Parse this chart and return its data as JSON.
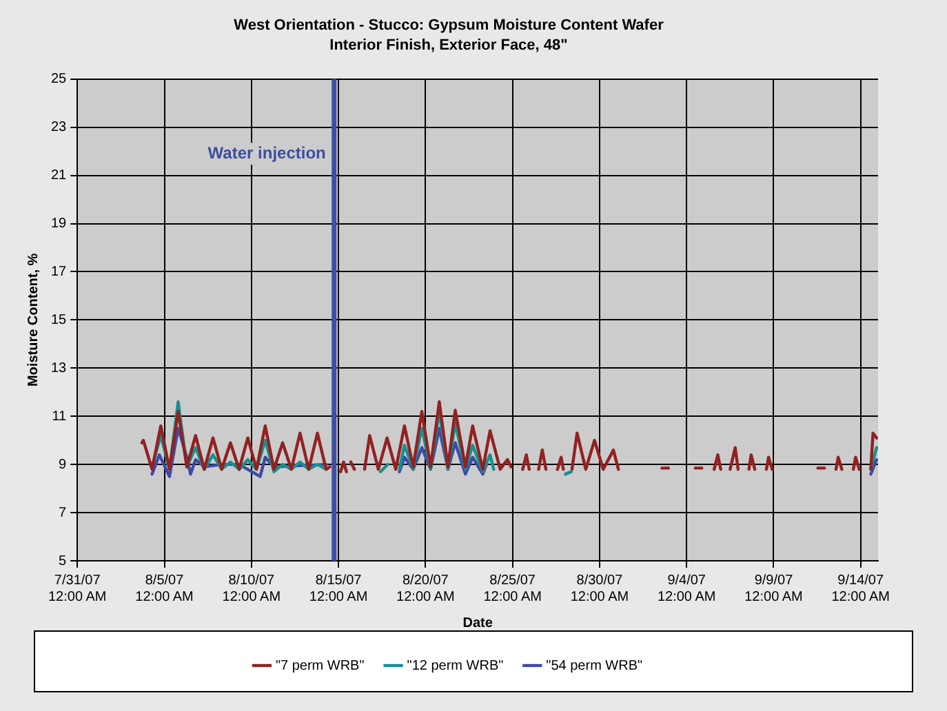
{
  "chart_data": {
    "type": "line",
    "title": "West Orientation - Stucco: Gypsum Moisture Content Wafer",
    "subtitle": "Interior Finish, Exterior Face, 48\"",
    "xlabel": "Date",
    "ylabel": "Moisture Content, %",
    "xlim": [
      "--07-31",
      "--09-15"
    ],
    "xticks": [
      {
        "value": "--07-31",
        "label": "7/31/07 12:00 AM"
      },
      {
        "value": "--08-05",
        "label": "8/5/07 12:00 AM"
      },
      {
        "value": "--08-10",
        "label": "8/10/07 12:00 AM"
      },
      {
        "value": "--08-15",
        "label": "8/15/07 12:00 AM"
      },
      {
        "value": "--08-20",
        "label": "8/20/07 12:00 AM"
      },
      {
        "value": "--08-25",
        "label": "8/25/07 12:00 AM"
      },
      {
        "value": "--08-30",
        "label": "8/30/07 12:00 AM"
      },
      {
        "value": "--09-04",
        "label": "9/4/07 12:00 AM"
      },
      {
        "value": "--09-09",
        "label": "9/9/07 12:00 AM"
      },
      {
        "value": "--09-14",
        "label": "9/14/07 12:00 AM"
      }
    ],
    "ylim": [
      5,
      25
    ],
    "yticks": [
      5,
      7,
      9,
      11,
      13,
      15,
      17,
      19,
      21,
      23,
      25
    ],
    "grid": true,
    "legend": "bottom",
    "marker": "none",
    "line_style": "solid",
    "ref_lines": [
      {
        "axis": "x",
        "value": "--08-14T18:00",
        "label": "Water injection",
        "color": "#3d4fa0"
      }
    ],
    "series": [
      {
        "name": "\"7 perm WRB\"",
        "color": "#922121",
        "x": [
          "--08-03T17:00",
          "--08-03T19:00",
          "--08-04T07:00",
          "--08-04T19:00",
          "--08-05T07:00",
          "--08-05T19:00",
          "--08-06T07:00",
          "--08-06T19:00",
          "--08-07T07:00",
          "--08-07T19:00",
          "--08-08T07:00",
          "--08-08T19:00",
          "--08-09T07:00",
          "--08-09T19:00",
          "--08-10T07:00",
          "--08-10T19:00",
          "--08-11T07:00",
          "--08-11T19:00",
          "--08-12T07:00",
          "--08-12T19:00",
          "--08-13T07:00",
          "--08-13T19:00",
          "--08-14T07:00",
          "--08-14T12:00",
          "--08-14T15:00",
          "--08-15T03:00",
          "--08-15T07:00",
          "--08-15T11:00",
          "--08-15T12:00",
          "--08-15T17:00",
          "--08-15T22:00",
          "--08-16T05:00",
          "--08-16T12:00",
          "--08-16T19:00",
          "--08-17T07:00",
          "--08-17T19:00",
          "--08-18T07:00",
          "--08-18T19:00",
          "--08-19T07:00",
          "--08-19T19:00",
          "--08-20T07:00",
          "--08-20T19:00",
          "--08-21T07:00",
          "--08-21T17:00",
          "--08-22T07:00",
          "--08-22T17:00",
          "--08-23T07:00",
          "--08-23T17:00",
          "--08-24T07:00",
          "--08-24T17:00",
          "--08-24T22:00",
          "--08-25T05:00",
          "--08-25T14:00",
          "--08-25T19:00",
          "--08-25T23:00",
          "--08-26T05:00",
          "--08-26T12:00",
          "--08-26T17:00",
          "--08-26T22:00",
          "--08-27T05:00",
          "--08-27T14:00",
          "--08-27T19:00",
          "--08-27T22:00",
          "--08-28T05:00",
          "--08-28T10:00",
          "--08-28T17:00",
          "--08-29T05:00",
          "--08-29T17:00",
          "--08-30T05:00",
          "--08-30T19:00",
          "--08-31T02:00",
          "--09-01T00:00",
          "--09-02T14:00",
          "--09-02T23:00",
          "--09-03T12:00",
          "--09-04T12:00",
          "--09-04T21:00",
          "--09-05T05:00",
          "--09-05T14:00",
          "--09-05T19:00",
          "--09-05T23:00",
          "--09-06T05:00",
          "--09-06T12:00",
          "--09-06T19:00",
          "--09-06T23:00",
          "--09-07T05:00",
          "--09-07T14:00",
          "--09-07T17:00",
          "--09-07T22:00",
          "--09-08T05:00",
          "--09-08T14:00",
          "--09-08T17:00",
          "--09-08T22:00",
          "--09-10T00:00",
          "--09-11T13:00",
          "--09-11T22:00",
          "--09-12T05:00",
          "--09-12T14:00",
          "--09-12T17:00",
          "--09-12T22:00",
          "--09-13T05:00",
          "--09-13T14:00",
          "--09-13T17:00",
          "--09-13T22:00",
          "--09-14T05:00",
          "--09-14T14:00",
          "--09-14T17:00",
          "--09-14T22:00"
        ],
        "values": [
          9.9,
          10.0,
          8.8,
          10.6,
          8.8,
          11.2,
          8.9,
          10.2,
          8.8,
          10.1,
          8.8,
          9.9,
          8.8,
          10.1,
          8.8,
          10.6,
          8.8,
          9.9,
          8.8,
          10.3,
          8.8,
          10.3,
          8.8,
          8.9,
          null,
          8.7,
          9.1,
          8.7,
          null,
          9.1,
          8.8,
          null,
          8.8,
          10.2,
          8.8,
          10.1,
          8.8,
          10.6,
          8.9,
          11.2,
          8.9,
          11.6,
          8.9,
          11.25,
          8.9,
          10.6,
          8.8,
          10.4,
          8.8,
          9.2,
          8.9,
          null,
          8.8,
          9.4,
          8.8,
          null,
          8.8,
          9.6,
          8.8,
          null,
          8.8,
          9.3,
          8.8,
          null,
          8.8,
          10.3,
          8.8,
          10.0,
          8.8,
          9.6,
          8.8,
          null,
          8.85,
          8.85,
          null,
          8.85,
          8.85,
          null,
          8.8,
          9.4,
          8.8,
          null,
          8.8,
          9.7,
          8.8,
          null,
          8.8,
          9.4,
          8.8,
          null,
          8.8,
          9.3,
          8.8,
          null,
          8.85,
          8.85,
          null,
          8.8,
          9.3,
          8.8,
          null,
          8.8,
          9.3,
          8.8,
          null,
          8.8,
          10.3,
          10.1
        ]
      },
      {
        "name": "\"12 perm WRB\"",
        "color": "#18908e",
        "x": [
          "--08-04T07:00",
          "--08-04T19:00",
          "--08-05T07:00",
          "--08-05T19:00",
          "--08-06T07:00",
          "--08-06T19:00",
          "--08-07T07:00",
          "--08-07T19:00",
          "--08-08T07:00",
          "--08-08T19:00",
          "--08-09T07:00",
          "--08-09T19:00",
          "--08-10T07:00",
          "--08-10T19:00",
          "--08-11T07:00",
          "--08-11T19:00",
          "--08-12T07:00",
          "--08-12T19:00",
          "--08-13T07:00",
          "--08-13T19:00",
          "--08-14T07:00",
          "--08-16T00:00",
          "--08-17T10:00",
          "--08-17T20:00",
          "--08-18T00:00",
          "--08-18T12:00",
          "--08-18T19:00",
          "--08-19T07:00",
          "--08-19T19:00",
          "--08-20T07:00",
          "--08-20T19:00",
          "--08-21T07:00",
          "--08-21T17:00",
          "--08-22T07:00",
          "--08-22T17:00",
          "--08-23T07:00",
          "--08-23T17:00",
          "--08-23T22:00",
          "--08-26T00:00",
          "--08-28T01:00",
          "--08-28T09:00",
          "--09-01T00:00",
          "--09-14T14:00",
          "--09-14T22:00"
        ],
        "values": [
          8.9,
          10.2,
          8.8,
          11.6,
          8.9,
          9.7,
          8.8,
          9.4,
          8.8,
          9.1,
          8.8,
          9.2,
          8.8,
          10.0,
          8.7,
          9.0,
          8.8,
          9.1,
          8.8,
          9.0,
          8.8,
          null,
          8.7,
          9.0,
          null,
          8.8,
          9.8,
          8.8,
          10.5,
          8.8,
          11.2,
          8.8,
          10.7,
          8.8,
          9.8,
          8.7,
          9.4,
          8.8,
          null,
          8.6,
          8.7,
          null,
          8.8,
          9.7
        ]
      },
      {
        "name": "\"54 perm WRB\"",
        "color": "#3d4aa8",
        "x": [
          "--08-04T07:00",
          "--08-04T17:00",
          "--08-05T07:00",
          "--08-05T19:00",
          "--08-06T07:00",
          "--08-06T12:00",
          "--08-06T19:00",
          "--08-07T07:00",
          "--08-08T07:00",
          "--08-09T07:00",
          "--08-10T12:00",
          "--08-10T19:00",
          "--08-11T07:00",
          "--08-14T07:00",
          "--08-16T00:00",
          "--08-18T12:00",
          "--08-18T19:00",
          "--08-19T07:00",
          "--08-19T19:00",
          "--08-20T07:00",
          "--08-20T19:00",
          "--08-21T07:00",
          "--08-21T17:00",
          "--08-22T07:00",
          "--08-22T17:00",
          "--08-23T07:00",
          "--08-23T12:00",
          "--09-01T00:00",
          "--09-14T14:00",
          "--09-14T22:00"
        ],
        "values": [
          8.6,
          9.4,
          8.5,
          10.5,
          9.3,
          8.6,
          9.2,
          8.9,
          9.0,
          9.0,
          8.5,
          9.3,
          8.9,
          9.0,
          null,
          8.7,
          9.3,
          8.8,
          9.7,
          8.8,
          10.5,
          8.8,
          9.9,
          8.6,
          9.3,
          8.6,
          9.0,
          null,
          8.6,
          9.2
        ]
      }
    ]
  }
}
